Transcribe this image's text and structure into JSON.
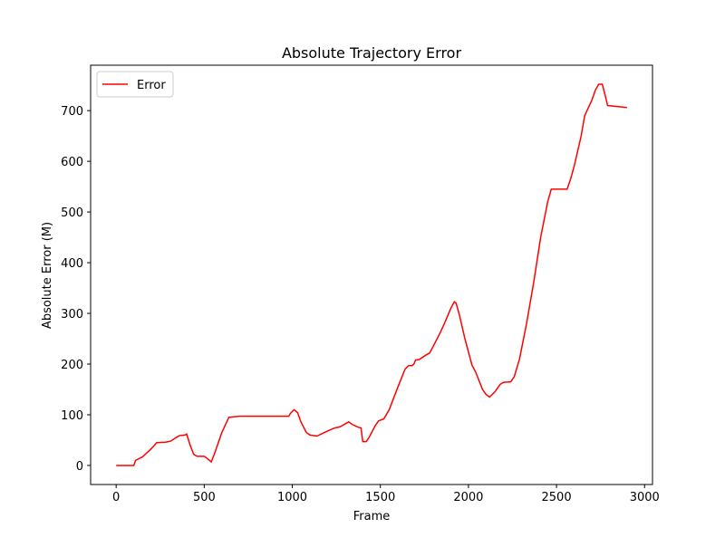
{
  "chart_data": {
    "type": "line",
    "title": "Absolute Trajectory Error",
    "xlabel": "Frame",
    "ylabel": "Absolute Error (M)",
    "x": [
      0,
      100,
      110,
      150,
      190,
      210,
      230,
      280,
      310,
      340,
      360,
      390,
      400,
      420,
      440,
      460,
      500,
      520,
      540,
      560,
      600,
      640,
      700,
      980,
      990,
      1010,
      1030,
      1050,
      1080,
      1100,
      1140,
      1170,
      1200,
      1240,
      1270,
      1300,
      1320,
      1340,
      1370,
      1390,
      1400,
      1420,
      1440,
      1470,
      1490,
      1520,
      1550,
      1600,
      1640,
      1660,
      1680,
      1690,
      1700,
      1720,
      1760,
      1780,
      1800,
      1840,
      1870,
      1900,
      1920,
      1930,
      1950,
      1980,
      2020,
      2040,
      2080,
      2100,
      2120,
      2150,
      2180,
      2200,
      2240,
      2260,
      2290,
      2330,
      2370,
      2410,
      2450,
      2470,
      2560,
      2580,
      2600,
      2620,
      2640,
      2660,
      2680,
      2700,
      2720,
      2740,
      2760,
      2780,
      2790,
      2900
    ],
    "series": [
      {
        "name": "Error",
        "color": "#ff0000",
        "values": [
          0,
          0,
          10,
          17,
          30,
          37,
          45,
          46,
          48,
          55,
          59,
          60,
          62,
          40,
          22,
          18,
          18,
          13,
          7,
          25,
          65,
          95,
          97,
          97,
          103,
          110,
          104,
          85,
          65,
          60,
          58,
          63,
          68,
          74,
          76,
          82,
          86,
          81,
          76,
          74,
          47,
          47,
          58,
          78,
          88,
          92,
          110,
          155,
          190,
          197,
          197,
          200,
          208,
          209,
          218,
          222,
          235,
          262,
          285,
          310,
          323,
          320,
          295,
          250,
          198,
          185,
          150,
          140,
          135,
          145,
          160,
          164,
          165,
          175,
          210,
          280,
          360,
          450,
          520,
          545,
          545,
          565,
          590,
          620,
          650,
          690,
          705,
          720,
          740,
          752,
          752,
          725,
          710,
          706
        ]
      }
    ],
    "xlim": [
      -145,
      3045
    ],
    "ylim": [
      -37.6,
      789.6
    ],
    "xticks": [
      0,
      500,
      1000,
      1500,
      2000,
      2500,
      3000
    ],
    "yticks": [
      0,
      100,
      200,
      300,
      400,
      500,
      600,
      700
    ],
    "legend": "upper left",
    "grid": false
  }
}
